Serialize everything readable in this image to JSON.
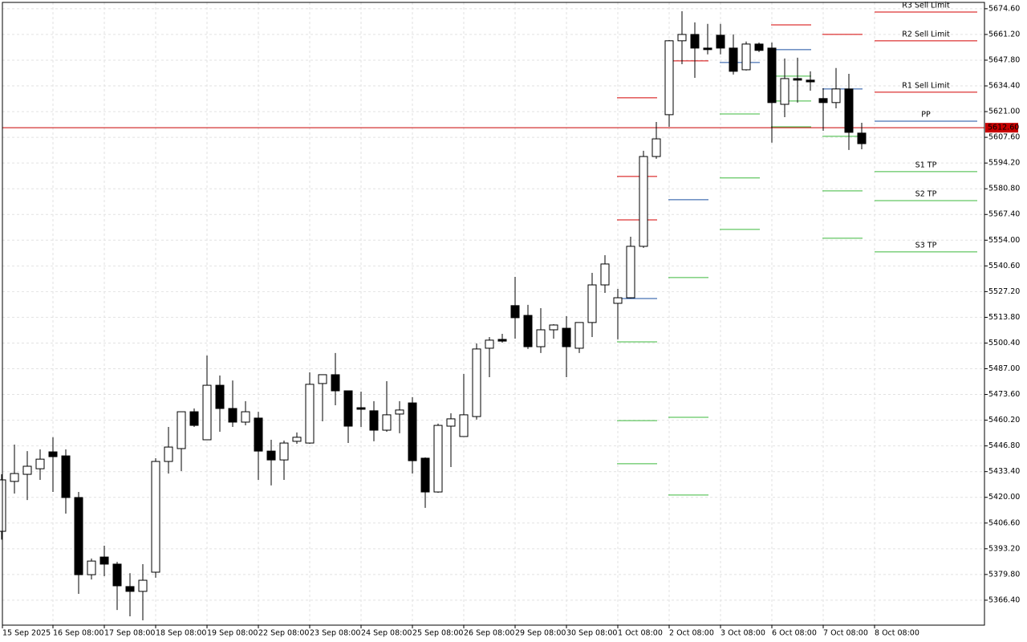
{
  "chart_data": {
    "type": "candlestick",
    "categories": [
      "15 Sep 2025",
      null,
      null,
      null,
      "16 Sep 08:00",
      null,
      null,
      null,
      "17 Sep 08:00",
      null,
      null,
      null,
      "18 Sep 08:00",
      null,
      null,
      null,
      "19 Sep 08:00",
      null,
      null,
      null,
      "22 Sep 08:00",
      null,
      null,
      null,
      "23 Sep 08:00",
      null,
      null,
      null,
      "24 Sep 08:00",
      null,
      null,
      null,
      "25 Sep 08:00",
      null,
      null,
      null,
      "26 Sep 08:00",
      null,
      null,
      null,
      "29 Sep 08:00",
      null,
      null,
      null,
      "30 Sep 08:00",
      null,
      null,
      null,
      "1 Oct 08:00",
      null,
      null,
      null,
      "2 Oct 08:00",
      null,
      null,
      null,
      "3 Oct 08:00",
      null,
      null,
      null,
      "6 Oct 08:00",
      null,
      null,
      null,
      "7 Oct 08:00",
      null,
      null,
      null,
      "8 Oct 08:00"
    ],
    "open": [
      5402.3,
      5428.3,
      5432.0,
      5434.9,
      5443.7,
      5441.6,
      5419.9,
      5379.7,
      5388.9,
      5385.2,
      5373.5,
      5371.0,
      5381.0,
      5438.7,
      5445.4,
      5464.6,
      5450.0,
      5478.4,
      5466.3,
      5459.2,
      5461.3,
      5444.1,
      5439.5,
      5449.2,
      5448.3,
      5479.3,
      5483.9,
      5475.5,
      5466.7,
      5465.1,
      5455.0,
      5463.4,
      5469.2,
      5440.4,
      5422.8,
      5457.1,
      5451.7,
      5462.1,
      5497.7,
      5502.3,
      5519.9,
      5514.8,
      5498.5,
      5507.3,
      5508.1,
      5497.7,
      5511.1,
      5530.7,
      5521.1,
      5524.0,
      5550.8,
      5597.6,
      5619.4,
      5657.9,
      5661.2,
      5654.1,
      5660.8,
      5654.1,
      5642.8,
      5656.2,
      5654.1,
      5624.8,
      5638.2,
      5637.4,
      5627.8,
      5625.7,
      5632.8,
      5609.8,
      null
    ],
    "high": [
      5432.0,
      5447.5,
      5444.1,
      5445.0,
      5451.3,
      5445.0,
      5422.8,
      5388.1,
      5394.8,
      5386.4,
      5380.5,
      5385.2,
      5440.4,
      5456.7,
      5464.6,
      5466.3,
      5493.9,
      5483.5,
      5480.9,
      5470.1,
      5464.6,
      5450.0,
      5449.6,
      5453.8,
      5485.1,
      5483.9,
      5495.2,
      5475.5,
      5475.1,
      5470.1,
      5480.5,
      5470.1,
      5472.2,
      5440.8,
      5458.4,
      5463.8,
      5484.3,
      5500.2,
      5503.5,
      5505.2,
      5534.9,
      5520.3,
      5518.6,
      5510.2,
      5514.4,
      5511.1,
      5537.0,
      5546.2,
      5528.6,
      5555.8,
      5600.6,
      5615.6,
      5658.3,
      5673.3,
      5667.5,
      5666.7,
      5666.7,
      5661.2,
      5657.5,
      5657.0,
      5657.0,
      5648.7,
      5649.1,
      5642.0,
      5633.2,
      5643.7,
      5640.7,
      5615.2,
      null
    ],
    "low": [
      5398.0,
      5422.0,
      5418.6,
      5429.1,
      5422.8,
      5411.5,
      5369.7,
      5377.2,
      5378.9,
      5361.3,
      5358.0,
      5355.9,
      5378.1,
      5432.4,
      5433.7,
      5456.7,
      5450.0,
      5454.2,
      5456.7,
      5457.5,
      5429.1,
      5426.2,
      5429.1,
      5447.9,
      5447.9,
      5459.6,
      5468.0,
      5448.3,
      5456.7,
      5449.2,
      5454.2,
      5453.4,
      5432.4,
      5414.5,
      5422.4,
      5435.8,
      5451.7,
      5460.5,
      5482.6,
      5500.6,
      5502.7,
      5497.3,
      5495.2,
      5502.7,
      5482.6,
      5495.2,
      5503.5,
      5526.5,
      5502.3,
      5523.6,
      5550.0,
      5596.4,
      5613.1,
      5645.7,
      5638.6,
      5650.8,
      5650.8,
      5640.3,
      5642.4,
      5652.0,
      5604.8,
      5618.1,
      5625.7,
      5631.9,
      5611.0,
      5622.7,
      5601.0,
      5601.4,
      null
    ],
    "close": [
      5429.1,
      5432.4,
      5436.2,
      5439.9,
      5441.2,
      5419.9,
      5379.7,
      5386.8,
      5385.2,
      5373.9,
      5371.0,
      5376.8,
      5438.7,
      5446.2,
      5464.6,
      5457.5,
      5478.4,
      5466.3,
      5459.2,
      5464.6,
      5444.1,
      5439.5,
      5448.3,
      5451.3,
      5478.9,
      5483.9,
      5475.5,
      5457.1,
      5465.9,
      5455.0,
      5463.0,
      5465.5,
      5439.1,
      5422.8,
      5457.5,
      5460.9,
      5463.0,
      5497.3,
      5501.9,
      5501.4,
      5513.6,
      5498.5,
      5507.3,
      5509.8,
      5498.5,
      5511.1,
      5530.7,
      5541.6,
      5524.0,
      5550.8,
      5597.6,
      5606.8,
      5657.9,
      5661.2,
      5654.1,
      5653.3,
      5654.1,
      5642.0,
      5656.2,
      5652.9,
      5625.7,
      5638.2,
      5637.4,
      5636.5,
      5625.7,
      5632.8,
      5610.2,
      5604.3,
      null
    ],
    "up_color": "#ffffff",
    "down_color": "#000000",
    "ylim": [
      5353.4,
      5677.9
    ],
    "yticks": [
      {
        "value": 5674.6,
        "label": "5674.60"
      },
      {
        "value": 5661.2,
        "label": "5661.20"
      },
      {
        "value": 5647.8,
        "label": "5647.80"
      },
      {
        "value": 5634.4,
        "label": "5634.40"
      },
      {
        "value": 5621,
        "label": "5621.00"
      },
      {
        "value": 5607.6,
        "label": "5607.60"
      },
      {
        "value": 5594.2,
        "label": "5594.20"
      },
      {
        "value": 5580.8,
        "label": "5580.80"
      },
      {
        "value": 5567.4,
        "label": "5567.40"
      },
      {
        "value": 5554,
        "label": "5554.00"
      },
      {
        "value": 5540.6,
        "label": "5540.60"
      },
      {
        "value": 5527.2,
        "label": "5527.20"
      },
      {
        "value": 5513.8,
        "label": "5513.80"
      },
      {
        "value": 5500.4,
        "label": "5500.40"
      },
      {
        "value": 5487,
        "label": "5487.00"
      },
      {
        "value": 5473.6,
        "label": "5473.60"
      },
      {
        "value": 5460.2,
        "label": "5460.20"
      },
      {
        "value": 5446.8,
        "label": "5446.80"
      },
      {
        "value": 5433.4,
        "label": "5433.40"
      },
      {
        "value": 5420,
        "label": "5420.00"
      },
      {
        "value": 5406.6,
        "label": "5406.60"
      },
      {
        "value": 5393.2,
        "label": "5393.20"
      },
      {
        "value": 5379.8,
        "label": "5379.80"
      },
      {
        "value": 5366.4,
        "label": "5366.40"
      }
    ],
    "grid": true,
    "current_price": {
      "value": 5612.6,
      "label": "5612.60"
    },
    "current_price_color": "#c80000",
    "level_colors": {
      "resistance": "#d40000",
      "pivot": "#1a4fa0",
      "support": "#3cb93c"
    },
    "pivot_history": [
      {
        "day": 48,
        "resistance": [
          5628.2,
          5587.2,
          5564.6
        ],
        "pivot": [
          5523.6
        ],
        "support": [
          5501.0,
          5460.0,
          5437.5
        ]
      },
      {
        "day": 52,
        "resistance": [
          5647.4
        ],
        "pivot": [
          5575.1
        ],
        "support": [
          5534.5,
          5461.7,
          5421.2
        ]
      },
      {
        "day": 56,
        "resistance": [],
        "pivot": [
          5646.6
        ],
        "support": [
          5619.8,
          5586.4,
          5559.6
        ]
      },
      {
        "day": 60,
        "resistance": [
          5666.2
        ],
        "pivot": [
          5653.3
        ],
        "support": [
          5639.5,
          5626.5,
          5613.1
        ]
      },
      {
        "day": 64,
        "resistance": [
          5661.2
        ],
        "pivot": [
          5632.8
        ],
        "support": [
          5608.1,
          5579.7,
          5555.0
        ]
      }
    ],
    "pivot_day": 68,
    "pivot_levels": [
      {
        "name": "R3 Sell Limit",
        "value": 5672.9,
        "kind": "resistance"
      },
      {
        "name": "R2 Sell Limit",
        "value": 5657.9,
        "kind": "resistance"
      },
      {
        "name": "R1 Sell Limit",
        "value": 5631.1,
        "kind": "resistance"
      },
      {
        "name": "PP",
        "value": 5616.0,
        "kind": "pivot"
      },
      {
        "name": "S1 TP",
        "value": 5589.7,
        "kind": "support"
      },
      {
        "name": "S2 TP",
        "value": 5574.6,
        "kind": "support"
      },
      {
        "name": "S3 TP",
        "value": 5547.9,
        "kind": "support"
      }
    ]
  }
}
